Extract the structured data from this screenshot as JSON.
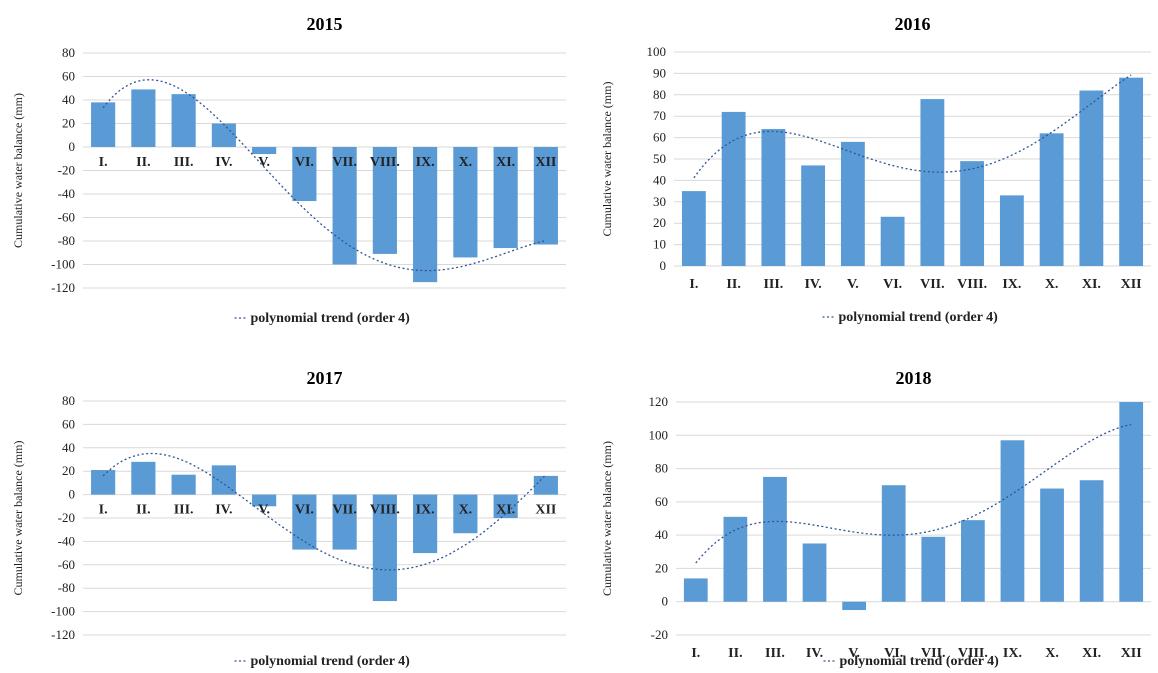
{
  "legend_label": "polynomial trend (order 4)",
  "ylabel": "Cumulative water balance (mm)",
  "colors": {
    "bar": "#5b9bd5",
    "trend": "#2f5597",
    "grid": "#d9d9d9"
  },
  "chart_data": [
    {
      "type": "bar",
      "title": "2015",
      "categories": [
        "I.",
        "II.",
        "III.",
        "IV.",
        "V.",
        "VI.",
        "VII.",
        "VIII.",
        "IX.",
        "X.",
        "XI.",
        "XII"
      ],
      "values": [
        38,
        49,
        45,
        20,
        -6,
        -46,
        -100,
        -91,
        -115,
        -94,
        -86,
        -83
      ],
      "ylim": [
        -120,
        80
      ],
      "yticks": [
        80,
        60,
        40,
        20,
        0,
        -20,
        -40,
        -60,
        -80,
        -100,
        -120
      ],
      "ylabel": "Cumulative water balance (mm)",
      "trend": "polynomial trend (order 4)",
      "labels_at_zero": true,
      "grid": true
    },
    {
      "type": "bar",
      "title": "2016",
      "categories": [
        "I.",
        "II.",
        "III.",
        "IV.",
        "V.",
        "VI.",
        "VII.",
        "VIII.",
        "IX.",
        "X.",
        "XI.",
        "XII"
      ],
      "values": [
        35,
        72,
        64,
        47,
        58,
        23,
        78,
        49,
        33,
        62,
        82,
        88
      ],
      "ylim": [
        0,
        100
      ],
      "yticks": [
        100,
        90,
        80,
        70,
        60,
        50,
        40,
        30,
        20,
        10,
        0
      ],
      "ylabel": "Cumulative water balance (mm)",
      "trend": "polynomial trend (order 4)",
      "labels_at_zero": false,
      "grid": true
    },
    {
      "type": "bar",
      "title": "2017",
      "categories": [
        "I.",
        "II.",
        "III.",
        "IV.",
        "V.",
        "VI.",
        "VII.",
        "VIII.",
        "IX.",
        "X.",
        "XI.",
        "XII"
      ],
      "values": [
        21,
        28,
        17,
        25,
        -10,
        -47,
        -47,
        -91,
        -50,
        -33,
        -20,
        16
      ],
      "ylim": [
        -120,
        80
      ],
      "yticks": [
        80,
        60,
        40,
        20,
        0,
        -20,
        -40,
        -60,
        -80,
        -100,
        -120
      ],
      "ylabel": "Cumulative water balance (mm)",
      "trend": "polynomial trend (order 4)",
      "labels_at_zero": true,
      "grid": true
    },
    {
      "type": "bar",
      "title": "2018",
      "categories": [
        "I.",
        "II.",
        "III.",
        "IV.",
        "V.",
        "VI.",
        "VII.",
        "VIII.",
        "IX.",
        "X.",
        "XI.",
        "XII"
      ],
      "values": [
        14,
        51,
        75,
        35,
        -5,
        70,
        39,
        49,
        97,
        68,
        73,
        120
      ],
      "ylim": [
        -20,
        120
      ],
      "yticks": [
        120,
        100,
        80,
        60,
        40,
        20,
        0,
        -20
      ],
      "ylabel": "Cumulative water balance (mm)",
      "trend": "polynomial trend (order 4)",
      "labels_at_zero": false,
      "grid": true
    }
  ]
}
